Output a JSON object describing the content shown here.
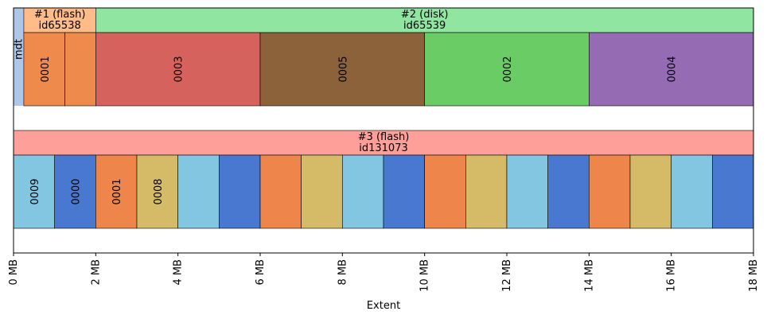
{
  "chart_data": {
    "type": "bar",
    "xlabel": "Extent",
    "xlim": [
      0,
      18
    ],
    "xticks": [
      "0 MB",
      "2 MB",
      "4 MB",
      "6 MB",
      "8 MB",
      "10 MB",
      "12 MB",
      "14 MB",
      "16 MB",
      "18 MB"
    ],
    "mdt": {
      "label": "mdt",
      "start": 0,
      "end": 0.25,
      "color": "#aec7e8"
    },
    "pools": [
      {
        "row": 0,
        "title": "#1 (flash)",
        "subtitle": "id65538",
        "start": 0.25,
        "end": 2,
        "color": "#ffbb88",
        "extents": [
          {
            "start": 0.25,
            "end": 1.25,
            "label": "0001",
            "color": "#ef8a4d"
          },
          {
            "start": 1.25,
            "end": 2,
            "label": "",
            "color": "#ef8a4d"
          }
        ]
      },
      {
        "row": 0,
        "title": "#2 (disk)",
        "subtitle": "id65539",
        "start": 2,
        "end": 18,
        "color": "#90e6a0",
        "extents": [
          {
            "start": 2,
            "end": 6,
            "label": "0003",
            "color": "#d6625e"
          },
          {
            "start": 6,
            "end": 10,
            "label": "0005",
            "color": "#8c623a"
          },
          {
            "start": 10,
            "end": 14,
            "label": "0002",
            "color": "#6acc65"
          },
          {
            "start": 14,
            "end": 18,
            "label": "0004",
            "color": "#956cb4"
          }
        ]
      },
      {
        "row": 1,
        "title": "#3 (flash)",
        "subtitle": "id131073",
        "start": 0,
        "end": 18,
        "color": "#ff9f9a",
        "extents": [
          {
            "start": 0,
            "end": 1,
            "label": "0009",
            "color": "#82c6e2"
          },
          {
            "start": 1,
            "end": 2,
            "label": "0000",
            "color": "#4878d0"
          },
          {
            "start": 2,
            "end": 3,
            "label": "0001",
            "color": "#ee854a"
          },
          {
            "start": 3,
            "end": 4,
            "label": "0008",
            "color": "#d5bb67"
          },
          {
            "start": 4,
            "end": 5,
            "label": "",
            "color": "#82c6e2"
          },
          {
            "start": 5,
            "end": 6,
            "label": "",
            "color": "#4878d0"
          },
          {
            "start": 6,
            "end": 7,
            "label": "",
            "color": "#ee854a"
          },
          {
            "start": 7,
            "end": 8,
            "label": "",
            "color": "#d5bb67"
          },
          {
            "start": 8,
            "end": 9,
            "label": "",
            "color": "#82c6e2"
          },
          {
            "start": 9,
            "end": 10,
            "label": "",
            "color": "#4878d0"
          },
          {
            "start": 10,
            "end": 11,
            "label": "",
            "color": "#ee854a"
          },
          {
            "start": 11,
            "end": 12,
            "label": "",
            "color": "#d5bb67"
          },
          {
            "start": 12,
            "end": 13,
            "label": "",
            "color": "#82c6e2"
          },
          {
            "start": 13,
            "end": 14,
            "label": "",
            "color": "#4878d0"
          },
          {
            "start": 14,
            "end": 15,
            "label": "",
            "color": "#ee854a"
          },
          {
            "start": 15,
            "end": 16,
            "label": "",
            "color": "#d5bb67"
          },
          {
            "start": 16,
            "end": 17,
            "label": "",
            "color": "#82c6e2"
          },
          {
            "start": 17,
            "end": 18,
            "label": "",
            "color": "#4878d0"
          }
        ]
      }
    ]
  }
}
